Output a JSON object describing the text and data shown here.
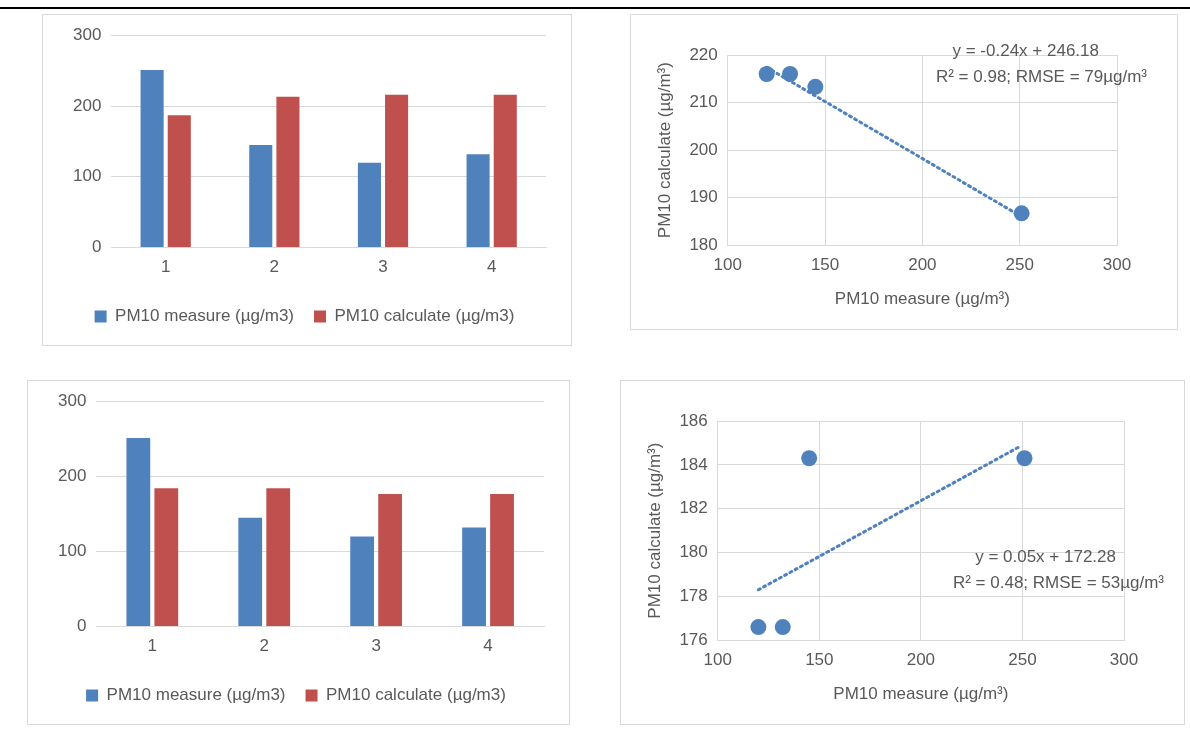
{
  "chart_data": [
    {
      "type": "bar",
      "categories": [
        "1",
        "2",
        "3",
        "4"
      ],
      "series": [
        {
          "name": "PM10 measure (µg/m3)",
          "color": "#4f81bd",
          "values": [
            251,
            145,
            120,
            132
          ]
        },
        {
          "name": "PM10 calculate (µg/m3)",
          "color": "#c0504d",
          "values": [
            187,
            213,
            216,
            216
          ]
        }
      ],
      "ylim": [
        0,
        300
      ],
      "yticks": [
        0,
        100,
        200,
        300
      ],
      "grid": "y",
      "legend": "bottom"
    },
    {
      "type": "scatter",
      "xlabel": "PM10 measure (µg/m³)",
      "ylabel": "PM10 calculate (µg/m³)",
      "series": [
        {
          "type": "scatter",
          "color": "#4f81bd",
          "x": [
            120,
            132,
            145,
            251
          ],
          "values": [
            216,
            216,
            213.3,
            186.7
          ],
          "marker": "circle"
        },
        {
          "type": "line",
          "color": "#4f81bd",
          "x": [
            120,
            251
          ],
          "values": [
            217.4,
            186
          ],
          "line_style": "dotted",
          "marker": "none"
        }
      ],
      "xlim": [
        100,
        300
      ],
      "xticks": [
        100,
        150,
        200,
        250,
        300
      ],
      "ylim": [
        180,
        220
      ],
      "yticks": [
        180,
        190,
        200,
        210,
        220
      ],
      "grid": true,
      "legend": false,
      "annotations": [
        "y = -0.24x + 246.18",
        "R² = 0.98; RMSE = 79µg/m³"
      ]
    },
    {
      "type": "bar",
      "categories": [
        "1",
        "2",
        "3",
        "4"
      ],
      "series": [
        {
          "name": "PM10 measure (µg/m3)",
          "color": "#4f81bd",
          "values": [
            251,
            145,
            120,
            132
          ]
        },
        {
          "name": "PM10 calculate (µg/m3)",
          "color": "#c0504d",
          "values": [
            184.3,
            184.3,
            176.6,
            176.6
          ]
        }
      ],
      "ylim": [
        0,
        300
      ],
      "yticks": [
        0,
        100,
        200,
        300
      ],
      "grid": "y",
      "legend": "bottom"
    },
    {
      "type": "scatter",
      "xlabel": "PM10 measure (µg/m³)",
      "ylabel": "PM10 calculate (µg/m³)",
      "series": [
        {
          "type": "scatter",
          "color": "#4f81bd",
          "x": [
            120,
            132,
            145,
            251
          ],
          "values": [
            176.6,
            176.6,
            184.3,
            184.3
          ],
          "marker": "circle"
        },
        {
          "type": "line",
          "color": "#4f81bd",
          "x": [
            120,
            248
          ],
          "values": [
            178.3,
            184.8
          ],
          "line_style": "dotted",
          "marker": "none"
        }
      ],
      "xlim": [
        100,
        300
      ],
      "xticks": [
        100,
        150,
        200,
        250,
        300
      ],
      "ylim": [
        176,
        186
      ],
      "yticks": [
        176,
        178,
        180,
        182,
        184,
        186
      ],
      "grid": true,
      "legend": false,
      "annotations": [
        "y = 0.05x + 172.28",
        "R² = 0.48; RMSE = 53µg/m³"
      ]
    }
  ]
}
